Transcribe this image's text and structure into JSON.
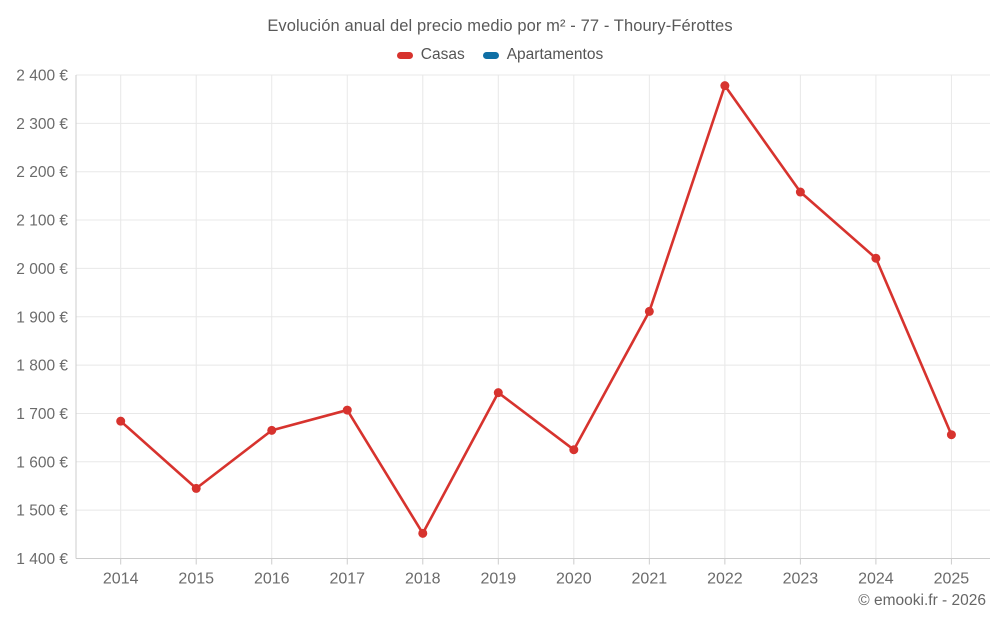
{
  "page": {
    "title": "Evolución anual del precio medio por m² - 77 - Thoury-Férottes",
    "copyright": "© emooki.fr - 2026"
  },
  "legend": {
    "items": [
      {
        "label": "Casas",
        "color": "#d7332e"
      },
      {
        "label": "Apartamentos",
        "color": "#0f6fa5"
      }
    ]
  },
  "chart_data": {
    "type": "line",
    "title": "Evolución anual del precio medio por m² - 77 - Thoury-Férottes",
    "x": [
      "2014",
      "2015",
      "2016",
      "2017",
      "2018",
      "2019",
      "2020",
      "2021",
      "2022",
      "2023",
      "2024",
      "2025"
    ],
    "series": [
      {
        "name": "Casas",
        "color": "#d7332e",
        "values": [
          1684,
          1545,
          1665,
          1707,
          1452,
          1743,
          1625,
          1911,
          2378,
          2158,
          2021,
          1656
        ]
      },
      {
        "name": "Apartamentos",
        "color": "#0f6fa5",
        "values": []
      }
    ],
    "xlabel": "",
    "ylabel": "",
    "ylim": [
      1400,
      2400
    ],
    "ytick_step": 100,
    "y_suffix": " €",
    "grid": true,
    "legend_position": "top",
    "grid_color": "#e8e8e8",
    "axis_color": "#cccccc",
    "label_color": "#6b6b6b"
  }
}
